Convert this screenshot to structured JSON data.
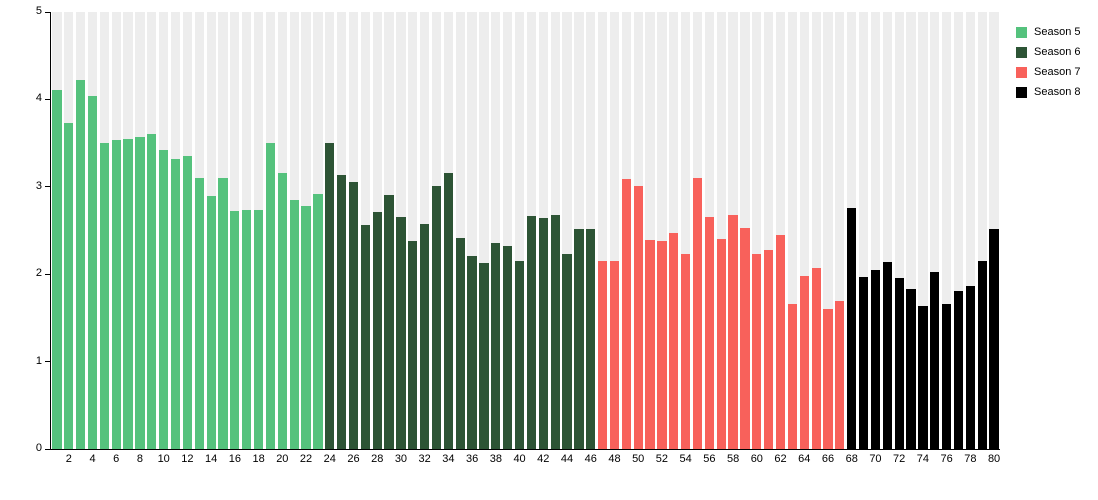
{
  "chart_data": {
    "type": "bar",
    "title": "",
    "xlabel": "",
    "ylabel": "",
    "ylim": [
      0,
      5
    ],
    "yticks": [
      0,
      1,
      2,
      3,
      4,
      5
    ],
    "xticks": [
      2,
      4,
      6,
      8,
      10,
      12,
      14,
      16,
      18,
      20,
      22,
      24,
      26,
      28,
      30,
      32,
      34,
      36,
      38,
      40,
      42,
      44,
      46,
      48,
      50,
      52,
      54,
      56,
      58,
      60,
      62,
      64,
      66,
      68,
      70,
      72,
      74,
      76,
      78,
      80
    ],
    "n_bars": 80,
    "grid": false,
    "legend_position": "top-right",
    "plot_style": {
      "column_background": "#EDEDED",
      "axis_color": "#000000",
      "background": "#FFFFFF"
    },
    "series": [
      {
        "name": "Season 5",
        "color": "#55C27D",
        "episode_range": [
          1,
          23
        ],
        "values": [
          4.11,
          3.73,
          4.22,
          4.04,
          3.5,
          3.53,
          3.55,
          3.57,
          3.61,
          3.42,
          3.32,
          3.35,
          3.1,
          2.89,
          3.1,
          2.72,
          2.74,
          2.73,
          3.5,
          3.16,
          2.85,
          2.78,
          2.92
        ]
      },
      {
        "name": "Season 6",
        "color": "#2D5435",
        "episode_range": [
          24,
          46
        ],
        "values": [
          3.5,
          3.13,
          3.05,
          2.56,
          2.71,
          2.91,
          2.65,
          2.38,
          2.57,
          3.01,
          3.16,
          2.42,
          2.21,
          2.13,
          2.36,
          2.32,
          2.15,
          2.67,
          2.64,
          2.68,
          2.23,
          2.52,
          2.52
        ]
      },
      {
        "name": "Season 7",
        "color": "#F8615B",
        "episode_range": [
          47,
          67
        ],
        "values": [
          2.15,
          2.15,
          3.09,
          3.01,
          2.39,
          2.38,
          2.47,
          2.23,
          3.1,
          2.66,
          2.4,
          2.68,
          2.53,
          2.23,
          2.28,
          2.45,
          1.66,
          1.98,
          2.07,
          1.6,
          1.69
        ]
      },
      {
        "name": "Season 8",
        "color": "#000000",
        "episode_range": [
          68,
          80
        ],
        "values": [
          2.76,
          1.97,
          2.05,
          2.14,
          1.96,
          1.83,
          1.64,
          2.02,
          1.66,
          1.81,
          1.87,
          2.15,
          2.52
        ]
      }
    ]
  }
}
